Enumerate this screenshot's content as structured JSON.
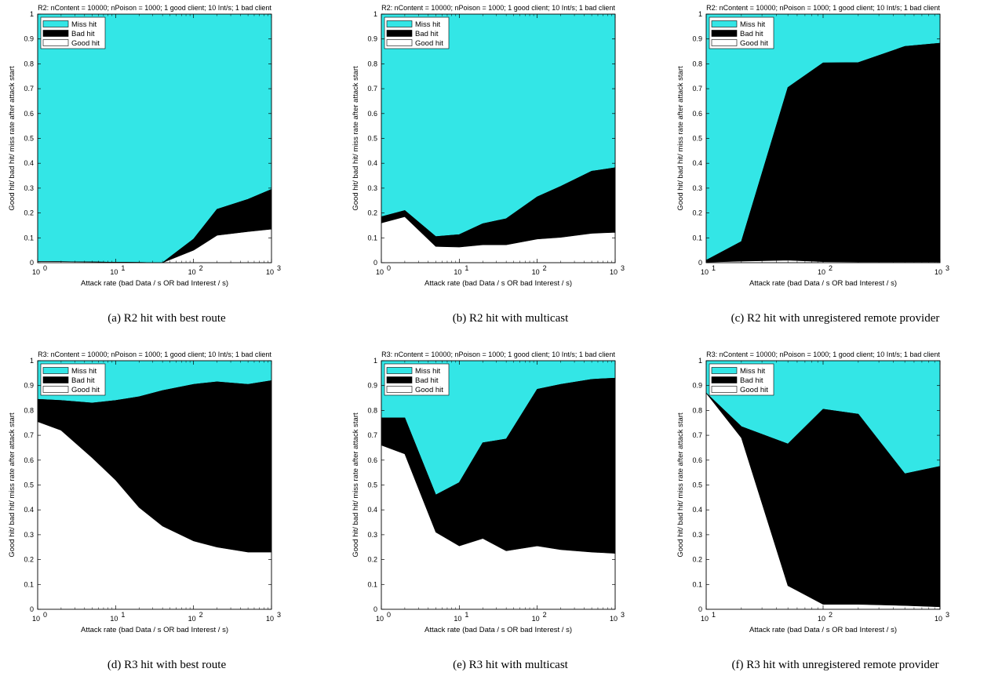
{
  "colors": {
    "miss": "#33E6E6",
    "bad": "#000000",
    "good": "#FFFFFF"
  },
  "chart_data": [
    {
      "type": "area",
      "title": "R2: nContent = 10000; nPoison = 1000; 1 good client; 10 Int/s; 1 bad client",
      "caption": "(a) R2 hit with best route",
      "xlabel": "Attack rate (bad Data / s OR bad Interest / s)",
      "ylabel": "Good hit/ bad hit/ miss rate after attack start",
      "xscale": "log",
      "xlim": [
        1,
        1000
      ],
      "ylim": [
        0,
        1
      ],
      "xtick_bases": [
        "10",
        "10",
        "10",
        "10"
      ],
      "xtick_exps": [
        "0",
        "1",
        "2",
        "3"
      ],
      "ytick_labels": [
        "0",
        "0.1",
        "0.2",
        "0.3",
        "0.4",
        "0.5",
        "0.6",
        "0.7",
        "0.8",
        "0.9",
        "1"
      ],
      "legend": [
        "Miss hit",
        "Bad hit",
        "Good hit"
      ],
      "legend_position": "top-left",
      "x": [
        1,
        2,
        5,
        10,
        20,
        40,
        100,
        200,
        500,
        1000
      ],
      "series": [
        {
          "name": "Good hit",
          "values": [
            0.005,
            0.004,
            0.003,
            0.002,
            0.001,
            0.0,
            0.05,
            0.11,
            0.125,
            0.135
          ]
        },
        {
          "name": "Bad hit",
          "values": [
            0.0,
            0.0,
            0.0,
            0.0,
            0.0,
            0.0,
            0.045,
            0.105,
            0.13,
            0.16
          ]
        },
        {
          "name": "Miss hit",
          "values": [
            0.995,
            0.996,
            0.997,
            0.998,
            0.999,
            1.0,
            0.905,
            0.785,
            0.745,
            0.705
          ]
        }
      ]
    },
    {
      "type": "area",
      "title": "R2: nContent = 10000; nPoison = 1000; 1 good client; 10 Int/s; 1 bad client",
      "caption": "(b) R2 hit with multicast",
      "xlabel": "Attack rate (bad Data / s OR bad Interest / s)",
      "ylabel": "Good hit/ bad hit/ miss rate after attack start",
      "xscale": "log",
      "xlim": [
        1,
        1000
      ],
      "ylim": [
        0,
        1
      ],
      "xtick_bases": [
        "10",
        "10",
        "10",
        "10"
      ],
      "xtick_exps": [
        "0",
        "1",
        "2",
        "3"
      ],
      "ytick_labels": [
        "0",
        "0.1",
        "0.2",
        "0.3",
        "0.4",
        "0.5",
        "0.6",
        "0.7",
        "0.8",
        "0.9",
        "1"
      ],
      "legend": [
        "Miss hit",
        "Bad hit",
        "Good hit"
      ],
      "legend_position": "top-left",
      "x": [
        1,
        2,
        5,
        10,
        20,
        40,
        100,
        200,
        500,
        1000
      ],
      "series": [
        {
          "name": "Good hit",
          "values": [
            0.16,
            0.185,
            0.065,
            0.063,
            0.072,
            0.072,
            0.095,
            0.102,
            0.118,
            0.122
          ]
        },
        {
          "name": "Bad hit",
          "values": [
            0.025,
            0.025,
            0.04,
            0.05,
            0.085,
            0.105,
            0.17,
            0.205,
            0.25,
            0.26
          ]
        },
        {
          "name": "Miss hit",
          "values": [
            0.815,
            0.79,
            0.895,
            0.887,
            0.843,
            0.823,
            0.735,
            0.693,
            0.632,
            0.618
          ]
        }
      ]
    },
    {
      "type": "area",
      "title": "R2: nContent = 10000; nPoison = 1000; 1 good client; 10 Int/s; 1 bad client",
      "caption": "(c) R2 hit with unregistered remote provider",
      "xlabel": "Attack rate (bad Data / s OR bad Interest / s)",
      "ylabel": "Good hit/ bad hit/ miss rate after attack start",
      "xscale": "log",
      "xlim": [
        10,
        1000
      ],
      "ylim": [
        0,
        1
      ],
      "xtick_bases": [
        "10",
        "10",
        "10"
      ],
      "xtick_exps": [
        "1",
        "2",
        "3"
      ],
      "ytick_labels": [
        "0",
        "0.1",
        "0.2",
        "0.3",
        "0.4",
        "0.5",
        "0.6",
        "0.7",
        "0.8",
        "0.9",
        "1"
      ],
      "legend": [
        "Miss hit",
        "Bad hit",
        "Good hit"
      ],
      "legend_position": "top-left",
      "x": [
        10,
        20,
        50,
        100,
        200,
        500,
        1000
      ],
      "series": [
        {
          "name": "Good hit",
          "values": [
            0.002,
            0.006,
            0.01,
            0.004,
            0.003,
            0.003,
            0.003
          ]
        },
        {
          "name": "Bad hit",
          "values": [
            0.008,
            0.079,
            0.695,
            0.8,
            0.802,
            0.867,
            0.88
          ]
        },
        {
          "name": "Miss hit",
          "values": [
            0.99,
            0.915,
            0.295,
            0.196,
            0.195,
            0.13,
            0.117
          ]
        }
      ]
    },
    {
      "type": "area",
      "title": "R3: nContent = 10000; nPoison = 1000; 1 good client; 10 Int/s; 1 bad client",
      "caption": "(d) R3 hit with best route",
      "xlabel": "Attack rate (bad Data / s OR bad Interest / s)",
      "ylabel": "Good hit/ bad hit/ miss rate after attack start",
      "xscale": "log",
      "xlim": [
        1,
        1000
      ],
      "ylim": [
        0,
        1
      ],
      "xtick_bases": [
        "10",
        "10",
        "10",
        "10"
      ],
      "xtick_exps": [
        "0",
        "1",
        "2",
        "3"
      ],
      "ytick_labels": [
        "0",
        "0.1",
        "0.2",
        "0.3",
        "0.4",
        "0.5",
        "0.6",
        "0.7",
        "0.8",
        "0.9",
        "1"
      ],
      "legend": [
        "Miss hit",
        "Bad hit",
        "Good hit"
      ],
      "legend_position": "top-left",
      "x": [
        1,
        2,
        5,
        10,
        20,
        40,
        100,
        200,
        500,
        1000
      ],
      "series": [
        {
          "name": "Good hit",
          "values": [
            0.755,
            0.72,
            0.61,
            0.52,
            0.41,
            0.335,
            0.275,
            0.25,
            0.23,
            0.23
          ]
        },
        {
          "name": "Bad hit",
          "values": [
            0.09,
            0.12,
            0.22,
            0.32,
            0.445,
            0.545,
            0.63,
            0.665,
            0.675,
            0.69
          ]
        },
        {
          "name": "Miss hit",
          "values": [
            0.155,
            0.16,
            0.17,
            0.16,
            0.145,
            0.12,
            0.095,
            0.085,
            0.095,
            0.08
          ]
        }
      ]
    },
    {
      "type": "area",
      "title": "R3: nContent = 10000; nPoison = 1000; 1 good client; 10 Int/s; 1 bad client",
      "caption": "(e) R3 hit with multicast",
      "xlabel": "Attack rate (bad Data / s OR bad Interest / s)",
      "ylabel": "Good hit/ bad hit/ miss rate after attack start",
      "xscale": "log",
      "xlim": [
        1,
        1000
      ],
      "ylim": [
        0,
        1
      ],
      "xtick_bases": [
        "10",
        "10",
        "10",
        "10"
      ],
      "xtick_exps": [
        "0",
        "1",
        "2",
        "3"
      ],
      "ytick_labels": [
        "0",
        "0.1",
        "0.2",
        "0.3",
        "0.4",
        "0.5",
        "0.6",
        "0.7",
        "0.8",
        "0.9",
        "1"
      ],
      "legend": [
        "Miss hit",
        "Bad hit",
        "Good hit"
      ],
      "legend_position": "top-left",
      "x": [
        1,
        2,
        5,
        10,
        20,
        40,
        100,
        200,
        500,
        1000
      ],
      "series": [
        {
          "name": "Good hit",
          "values": [
            0.66,
            0.625,
            0.31,
            0.255,
            0.285,
            0.235,
            0.255,
            0.24,
            0.23,
            0.225
          ]
        },
        {
          "name": "Bad hit",
          "values": [
            0.11,
            0.145,
            0.15,
            0.255,
            0.385,
            0.45,
            0.63,
            0.665,
            0.695,
            0.705
          ]
        },
        {
          "name": "Miss hit",
          "values": [
            0.23,
            0.23,
            0.54,
            0.49,
            0.33,
            0.315,
            0.115,
            0.095,
            0.075,
            0.07
          ]
        }
      ]
    },
    {
      "type": "area",
      "title": "R3: nContent = 10000; nPoison = 1000; 1 good client; 10 Int/s; 1 bad client",
      "caption": "(f) R3 hit with unregistered remote provider",
      "xlabel": "Attack rate (bad Data / s OR bad Interest / s)",
      "ylabel": "Good hit/ bad hit/ miss rate after attack start",
      "xscale": "log",
      "xlim": [
        10,
        1000
      ],
      "ylim": [
        0,
        1
      ],
      "xtick_bases": [
        "10",
        "10",
        "10"
      ],
      "xtick_exps": [
        "1",
        "2",
        "3"
      ],
      "ytick_labels": [
        "0",
        "0.1",
        "0.2",
        "0.3",
        "0.4",
        "0.5",
        "0.6",
        "0.7",
        "0.8",
        "0.9",
        "1"
      ],
      "legend": [
        "Miss hit",
        "Bad hit",
        "Good hit"
      ],
      "legend_position": "top-left",
      "x": [
        10,
        20,
        50,
        100,
        200,
        500,
        1000
      ],
      "series": [
        {
          "name": "Good hit",
          "values": [
            0.87,
            0.69,
            0.095,
            0.02,
            0.02,
            0.015,
            0.01
          ]
        },
        {
          "name": "Bad hit",
          "values": [
            0.0,
            0.045,
            0.57,
            0.785,
            0.765,
            0.53,
            0.565
          ]
        },
        {
          "name": "Miss hit",
          "values": [
            0.13,
            0.265,
            0.335,
            0.195,
            0.215,
            0.455,
            0.425
          ]
        }
      ]
    }
  ]
}
